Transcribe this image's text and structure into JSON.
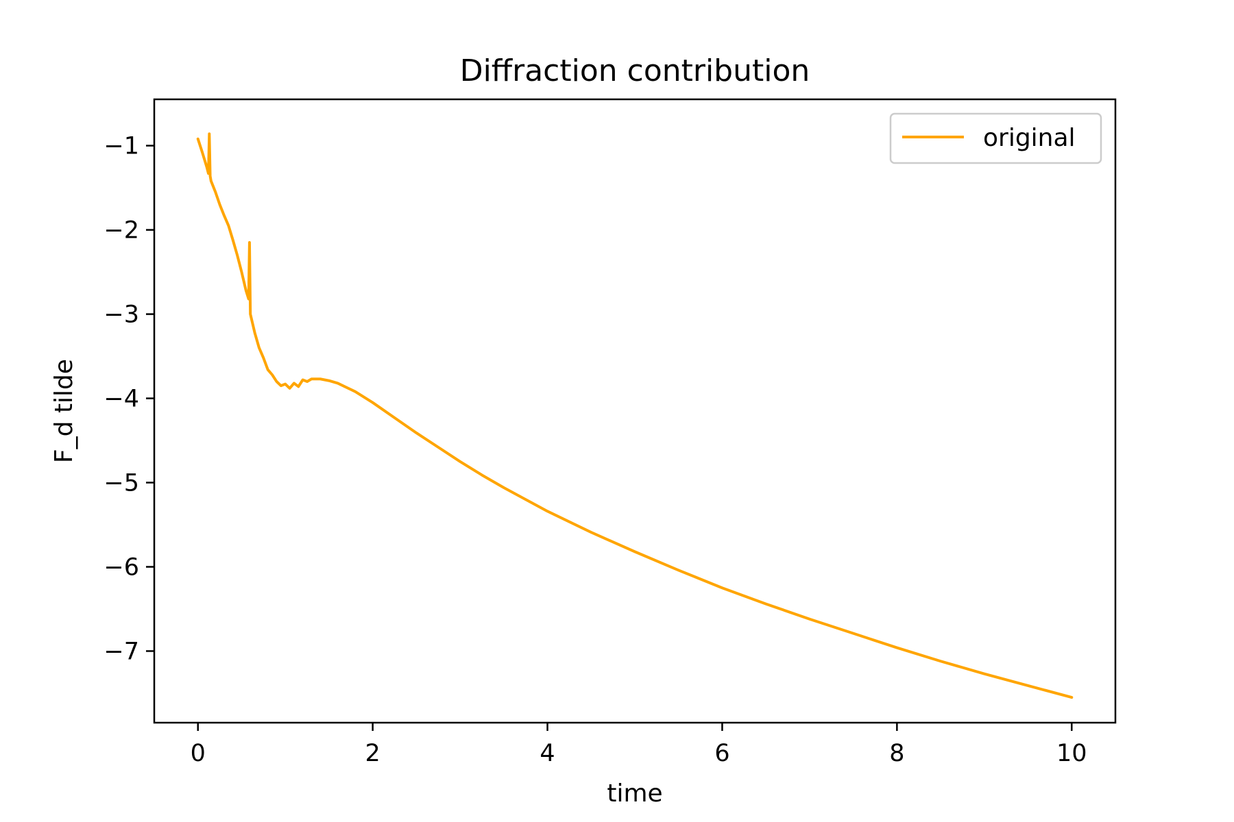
{
  "chart_data": {
    "type": "line",
    "title": "Diffraction contribution",
    "xlabel": "time",
    "ylabel": "F_d tilde",
    "xlim": [
      -0.5,
      10.5
    ],
    "ylim": [
      -7.85,
      -0.45
    ],
    "xticks": [
      0,
      2,
      4,
      6,
      8,
      10
    ],
    "xtick_labels": [
      "0",
      "2",
      "4",
      "6",
      "8",
      "10"
    ],
    "yticks": [
      -1,
      -2,
      -3,
      -4,
      -5,
      -6,
      -7
    ],
    "ytick_labels": [
      "−1",
      "−2",
      "−3",
      "−4",
      "−5",
      "−6",
      "−7"
    ],
    "grid": false,
    "legend_position": "top-right",
    "series": [
      {
        "name": "original",
        "color": "#ffa500",
        "x": [
          0.0,
          0.05,
          0.1,
          0.12,
          0.13,
          0.14,
          0.15,
          0.2,
          0.25,
          0.3,
          0.35,
          0.4,
          0.45,
          0.5,
          0.55,
          0.58,
          0.59,
          0.6,
          0.65,
          0.7,
          0.75,
          0.8,
          0.85,
          0.9,
          0.95,
          1.0,
          1.05,
          1.1,
          1.15,
          1.2,
          1.25,
          1.3,
          1.4,
          1.5,
          1.6,
          1.8,
          2.0,
          2.25,
          2.5,
          2.75,
          3.0,
          3.25,
          3.5,
          3.75,
          4.0,
          4.5,
          5.0,
          5.5,
          6.0,
          6.5,
          7.0,
          7.5,
          8.0,
          8.5,
          9.0,
          9.5,
          10.0
        ],
        "y": [
          -0.92,
          -1.08,
          -1.25,
          -1.33,
          -0.86,
          -1.36,
          -1.42,
          -1.55,
          -1.7,
          -1.83,
          -1.95,
          -2.12,
          -2.3,
          -2.5,
          -2.72,
          -2.82,
          -2.15,
          -3.0,
          -3.22,
          -3.4,
          -3.52,
          -3.66,
          -3.72,
          -3.8,
          -3.85,
          -3.83,
          -3.88,
          -3.82,
          -3.86,
          -3.78,
          -3.8,
          -3.77,
          -3.77,
          -3.79,
          -3.82,
          -3.92,
          -4.05,
          -4.23,
          -4.41,
          -4.58,
          -4.75,
          -4.91,
          -5.06,
          -5.2,
          -5.34,
          -5.59,
          -5.82,
          -6.04,
          -6.25,
          -6.44,
          -6.62,
          -6.79,
          -6.96,
          -7.12,
          -7.27,
          -7.41,
          -7.55
        ]
      }
    ]
  }
}
